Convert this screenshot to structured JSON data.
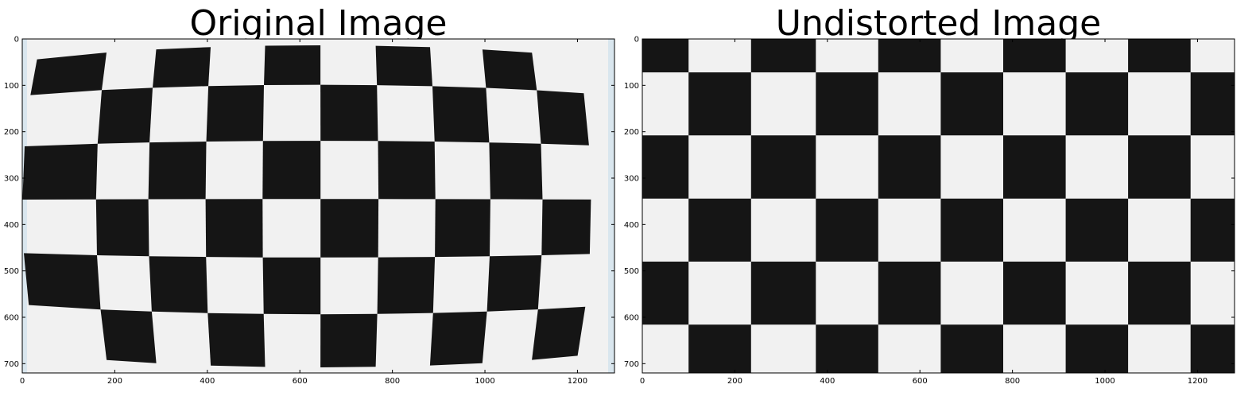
{
  "figure": {
    "colors": {
      "background": "#ffffff",
      "dark_square": "#151515",
      "light_square": "#f1f1f1",
      "border_tint": "#d9e6ee",
      "axis": "#000000"
    },
    "panels": [
      {
        "title": "Original Image",
        "distorted": true,
        "x_ticks": [
          "0",
          "200",
          "400",
          "600",
          "800",
          "1000",
          "1200"
        ],
        "y_ticks": [
          "0",
          "100",
          "200",
          "300",
          "400",
          "500",
          "600",
          "700"
        ]
      },
      {
        "title": "Undistorted Image",
        "distorted": false,
        "x_ticks": [
          "0",
          "200",
          "400",
          "600",
          "800",
          "1000",
          "1200"
        ],
        "y_ticks": [
          "0",
          "100",
          "200",
          "300",
          "400",
          "500",
          "600",
          "700"
        ]
      }
    ]
  }
}
